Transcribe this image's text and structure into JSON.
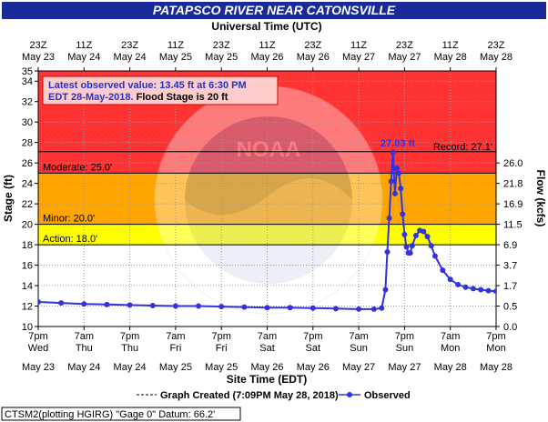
{
  "chart_data": {
    "type": "line",
    "title": "PATAPSCO RIVER NEAR CATONSVILLE",
    "top_axis_title": "Universal Time (UTC)",
    "top_ticks": [
      {
        "time": "23Z",
        "date": "May 23"
      },
      {
        "time": "11Z",
        "date": "May 24"
      },
      {
        "time": "23Z",
        "date": "May 24"
      },
      {
        "time": "11Z",
        "date": "May 25"
      },
      {
        "time": "23Z",
        "date": "May 25"
      },
      {
        "time": "11Z",
        "date": "May 26"
      },
      {
        "time": "23Z",
        "date": "May 26"
      },
      {
        "time": "11Z",
        "date": "May 27"
      },
      {
        "time": "23Z",
        "date": "May 27"
      },
      {
        "time": "11Z",
        "date": "May 28"
      },
      {
        "time": "23Z",
        "date": "May 28"
      }
    ],
    "bottom_axis_title": "Site Time (EDT)",
    "bottom_ticks": [
      {
        "time": "7pm",
        "day": "Wed",
        "date": "May 23"
      },
      {
        "time": "7am",
        "day": "Thu",
        "date": "May 24"
      },
      {
        "time": "7pm",
        "day": "Thu",
        "date": "May 24"
      },
      {
        "time": "7am",
        "day": "Fri",
        "date": "May 25"
      },
      {
        "time": "7pm",
        "day": "Fri",
        "date": "May 25"
      },
      {
        "time": "7am",
        "day": "Sat",
        "date": "May 26"
      },
      {
        "time": "7pm",
        "day": "Sat",
        "date": "May 26"
      },
      {
        "time": "7am",
        "day": "Sun",
        "date": "May 27"
      },
      {
        "time": "7pm",
        "day": "Sun",
        "date": "May 27"
      },
      {
        "time": "7am",
        "day": "Mon",
        "date": "May 28"
      },
      {
        "time": "7pm",
        "day": "Mon",
        "date": "May 28"
      }
    ],
    "xlim_hours_since_first_tick": [
      0,
      120
    ],
    "ylabel": "Stage (ft)",
    "ylim": [
      10,
      35
    ],
    "y_ticks": [
      10,
      12,
      14,
      16,
      18,
      20,
      22,
      24,
      26,
      28,
      30,
      32,
      34,
      35
    ],
    "y2label": "Flow (kcfs)",
    "y2_ticks": [
      {
        "label": "0.0",
        "stage": 10
      },
      {
        "label": "0.5",
        "stage": 12
      },
      {
        "label": "1.7",
        "stage": 14
      },
      {
        "label": "3.7",
        "stage": 16
      },
      {
        "label": "6.9",
        "stage": 18
      },
      {
        "label": "11.5",
        "stage": 20
      },
      {
        "label": "16.9",
        "stage": 22
      },
      {
        "label": "21.8",
        "stage": 24
      },
      {
        "label": "26.0",
        "stage": 26
      }
    ],
    "flood_categories": [
      {
        "label": "Action: 18.0'",
        "stage": 18.0,
        "color": "#ffff00"
      },
      {
        "label": "Minor: 20.0'",
        "stage": 20.0,
        "color": "#ffa500"
      },
      {
        "label": "Moderate: 25.0'",
        "stage": 25.0,
        "color": "#ff3333"
      }
    ],
    "record": {
      "label": "Record: 27.1'",
      "stage": 27.1
    },
    "info_box": {
      "line1": "Latest observed value: 13.45 ft at 6:30 PM",
      "line2_a": "EDT 28-May-2018.",
      "line2_b": " Flood Stage is 20 ft"
    },
    "peak_label": "27.03 ft",
    "legend": {
      "graph_created": "Graph Created (7:09PM May 28, 2018)",
      "observed": "Observed"
    },
    "footer": "CTSM2(plotting HGIRG) \"Gage 0\" Datum: 66.2'",
    "series": [
      {
        "name": "Observed",
        "color": "#3333dd",
        "x": [
          0,
          6,
          12,
          18,
          24,
          30,
          36,
          42,
          48,
          54,
          60,
          66,
          72,
          78,
          84,
          88,
          90,
          91,
          91.5,
          92,
          92.5,
          93,
          93.5,
          94,
          94.5,
          95,
          95.5,
          96,
          96.5,
          97,
          97.5,
          98,
          99,
          100,
          101,
          102,
          103,
          104,
          106,
          108,
          110,
          112,
          114,
          116,
          118,
          120
        ],
        "y": [
          12.4,
          12.3,
          12.2,
          12.15,
          12.1,
          12.05,
          12.0,
          12.0,
          11.95,
          11.9,
          11.85,
          11.85,
          11.8,
          11.75,
          11.7,
          11.7,
          11.8,
          13.6,
          17.3,
          20.6,
          24.2,
          27.03,
          23.0,
          25.5,
          25.0,
          23.5,
          21.0,
          19.0,
          17.8,
          17.2,
          17.2,
          17.9,
          18.9,
          19.4,
          19.3,
          18.8,
          17.9,
          16.9,
          15.5,
          14.6,
          14.1,
          13.85,
          13.7,
          13.6,
          13.5,
          13.45
        ]
      }
    ],
    "grid": true,
    "legend_position": "bottom"
  }
}
